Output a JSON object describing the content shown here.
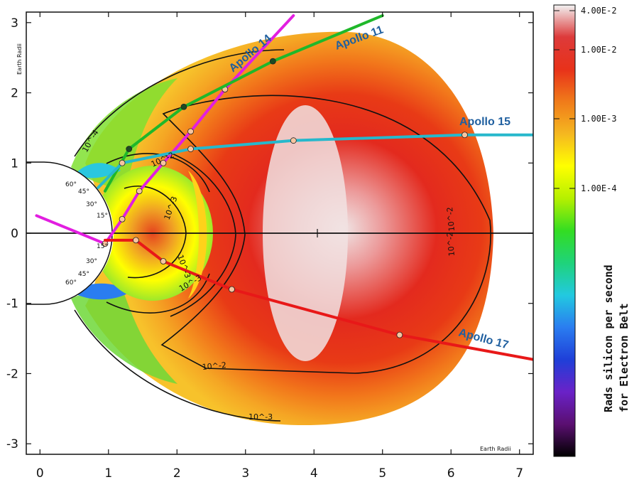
{
  "chart_data": {
    "type": "heatmap",
    "x_label": "Earth Radii",
    "y_label": "Earth Radii",
    "xlim": [
      -0.2,
      7.2
    ],
    "ylim": [
      -3.15,
      3.15
    ],
    "x_ticks": [
      "0",
      "1",
      "2",
      "3",
      "4",
      "5",
      "6",
      "7"
    ],
    "y_ticks": [
      "3",
      "2",
      "1",
      "0",
      "-1",
      "-2",
      "-3"
    ],
    "colorbar": {
      "title_line1": "Rads silicon per second",
      "title_line2": "for  Electron Belt",
      "tick_labels": [
        "4.00E-2",
        "1.00E-2",
        "1.00E-3",
        "1.00E-4"
      ],
      "stops": [
        "#f2f2f2",
        "#dd3a3a",
        "#e8321a",
        "#f07b1a",
        "#f5b820",
        "#ffff00",
        "#b5f000",
        "#33dd22",
        "#1fd37a",
        "#22c9e0",
        "#2a7df0",
        "#1f3fd8",
        "#6a22c8",
        "#5a0f70",
        "#000000"
      ]
    },
    "contour_labels": [
      "10^-4",
      "10^-3",
      "10^-2",
      "10^-3",
      "10^-2",
      "10^-3",
      "10^-2",
      "10^-2",
      "10^-3"
    ],
    "latitude_labels": [
      "60°",
      "45°",
      "30°",
      "15°",
      "15°",
      "30°",
      "45°",
      "60°"
    ],
    "series": [
      {
        "name": "Apollo 14",
        "color": "#e21ee0",
        "points": [
          [
            -0.05,
            0.25
          ],
          [
            0.95,
            -0.15
          ],
          [
            1.2,
            0.2
          ],
          [
            1.45,
            0.6
          ],
          [
            1.8,
            1.0
          ],
          [
            2.2,
            1.45
          ],
          [
            2.7,
            2.05
          ],
          [
            3.7,
            3.1
          ]
        ]
      },
      {
        "name": "Apollo 11",
        "color": "#1fb82a",
        "points": [
          [
            0.95,
            0.6
          ],
          [
            1.3,
            1.2
          ],
          [
            2.1,
            1.8
          ],
          [
            3.4,
            2.45
          ],
          [
            5.0,
            3.1
          ]
        ]
      },
      {
        "name": "Apollo 15",
        "color": "#27b8cc",
        "points": [
          [
            0.85,
            0.65
          ],
          [
            1.2,
            1.0
          ],
          [
            2.2,
            1.2
          ],
          [
            3.7,
            1.32
          ],
          [
            6.2,
            1.4
          ],
          [
            7.2,
            1.4
          ]
        ]
      },
      {
        "name": "Apollo 17",
        "color": "#e81818",
        "points": [
          [
            0.95,
            -0.1
          ],
          [
            1.4,
            -0.1
          ],
          [
            1.8,
            -0.4
          ],
          [
            2.8,
            -0.8
          ],
          [
            5.25,
            -1.45
          ],
          [
            7.2,
            -1.8
          ]
        ]
      }
    ]
  }
}
